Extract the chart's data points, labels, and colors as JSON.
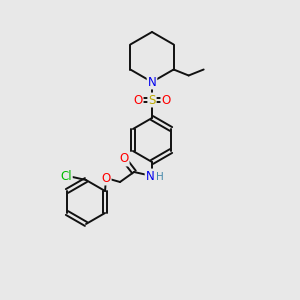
{
  "bg_color": "#e8e8e8",
  "atom_colors": {
    "N": "#0000ee",
    "O": "#ff0000",
    "S": "#bbaa00",
    "Cl": "#00bb00",
    "C": "#000000",
    "H": "#4488aa"
  },
  "line_color": "#111111",
  "line_width": 1.4,
  "font_size_atom": 8.5,
  "fig_w": 3.0,
  "fig_h": 3.0,
  "dpi": 100
}
